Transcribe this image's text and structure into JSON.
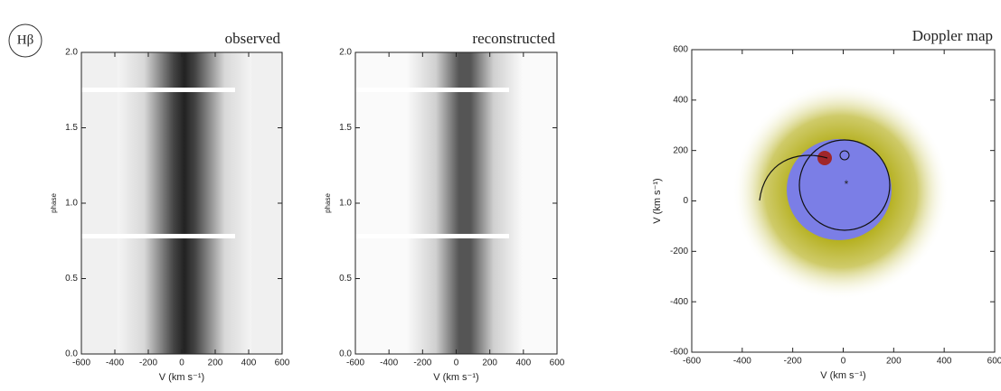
{
  "chart_data": [
    {
      "type": "heatmap",
      "title": "observed",
      "annotation": "Hβ",
      "xlabel": "V (km s⁻¹)",
      "ylabel": "phase",
      "xlim": [
        -600,
        600
      ],
      "xticks": [
        -600,
        -400,
        -200,
        0,
        200,
        400,
        600
      ],
      "ylim": [
        0,
        2
      ],
      "yticks": [
        {
          "value": 0,
          "label": "0.0"
        },
        0.5,
        {
          "value": 1,
          "label": "1.0"
        },
        1.5,
        {
          "value": 2,
          "label": "2.0"
        }
      ]
    },
    {
      "type": "heatmap",
      "title": "reconstructed",
      "xlabel": "V (km s⁻¹)",
      "ylabel": "phase",
      "xlim": [
        -600,
        600
      ],
      "xticks": [
        -600,
        -400,
        -200,
        0,
        200,
        400,
        600
      ],
      "ylim": [
        0,
        2
      ],
      "yticks": [
        {
          "value": 0,
          "label": "0.0"
        },
        0.5,
        {
          "value": 1,
          "label": "1.0"
        },
        1.5,
        {
          "value": 2,
          "label": "2.0"
        }
      ]
    },
    {
      "type": "heatmap",
      "title": "Doppler map",
      "xlabel": "V (km s⁻¹)",
      "ylabel": "V (km s⁻¹)",
      "xlim": [
        -600,
        600
      ],
      "xticks": [
        -600,
        -400,
        -200,
        0,
        200,
        400,
        600
      ],
      "ylim": [
        -600,
        600
      ],
      "yticks": [
        -600,
        -400,
        -200,
        0,
        200,
        400,
        600
      ]
    }
  ]
}
